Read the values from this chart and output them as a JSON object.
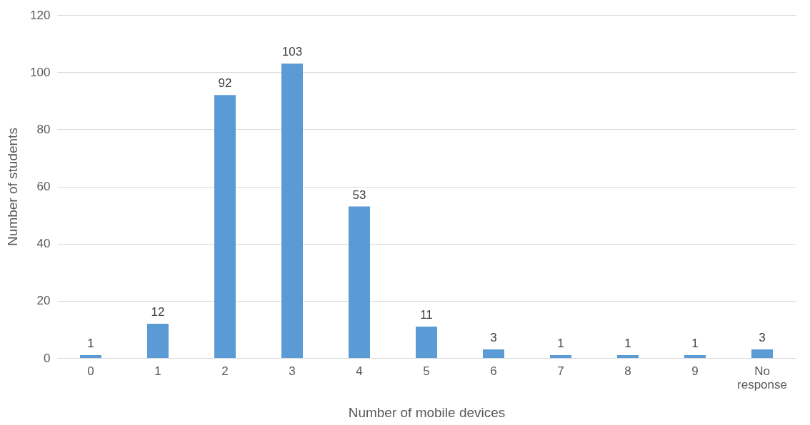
{
  "chart_data": {
    "type": "bar",
    "xlabel": "Number of mobile devices",
    "ylabel": "Number of students",
    "categories": [
      "0",
      "1",
      "2",
      "3",
      "4",
      "5",
      "6",
      "7",
      "8",
      "9",
      "No response"
    ],
    "values": [
      1,
      12,
      92,
      103,
      53,
      11,
      3,
      1,
      1,
      1,
      3
    ],
    "color": "#5b9bd5",
    "ylim": [
      0,
      120
    ],
    "yticks": [
      0,
      20,
      40,
      60,
      80,
      100,
      120
    ],
    "grid": "y",
    "data_labels": true
  }
}
